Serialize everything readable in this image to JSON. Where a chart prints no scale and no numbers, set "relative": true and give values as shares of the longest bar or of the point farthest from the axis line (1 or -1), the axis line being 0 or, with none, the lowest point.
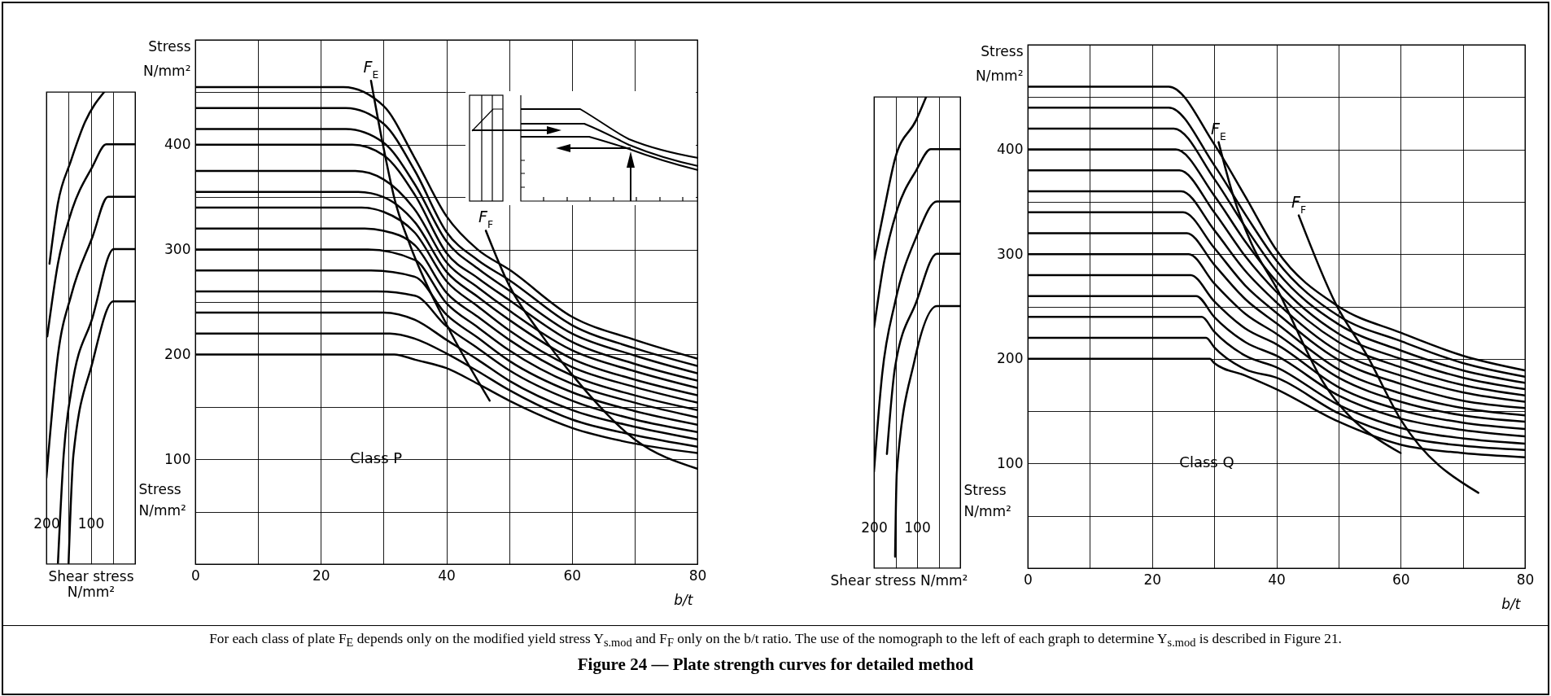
{
  "chart_data": [
    {
      "type": "line",
      "relative": true,
      "xlabel": "Shear stress N/mm²",
      "ylabel": "Stress N/mm²",
      "xlim": [
        200,
        0
      ],
      "xticks": [
        200,
        {
          "value": 150,
          "label": null
        },
        100,
        {
          "value": 50,
          "label": null
        },
        {
          "value": 0,
          "label": null
        }
      ],
      "tick_labels": "x",
      "grid": "x",
      "series": [
        {
          "color": "#000000",
          "x": [
            193,
            174,
            145,
            113,
            69.6
          ],
          "values": [
            0.636,
            0.764,
            0.853,
            0.936,
            1
          ]
        },
        {
          "color": "#000000",
          "x": [
            198,
            174,
            145,
            96,
            65,
            0
          ],
          "values": [
            0.482,
            0.636,
            0.742,
            0.842,
            0.889,
            0.889
          ]
        },
        {
          "color": "#000000",
          "x": [
            200,
            174,
            143.5,
            96,
            61,
            0
          ],
          "values": [
            0.182,
            0.442,
            0.571,
            0.693,
            0.778,
            0.778
          ]
        },
        {
          "color": "#000000",
          "x": [
            174,
            161,
            143.5,
            96,
            48,
            0
          ],
          "values": [
            0,
            0.231,
            0.369,
            0.522,
            0.667,
            0.667
          ]
        },
        {
          "color": "#000000",
          "x": [
            150,
            139,
            96,
            49,
            0
          ],
          "values": [
            0,
            0.231,
            0.427,
            0.556,
            0.556
          ]
        }
      ]
    },
    {
      "type": "line",
      "xlabel": "b/t",
      "ylabel": "Stress N/mm²",
      "xlim": [
        0,
        80
      ],
      "xticks": [
        0,
        {
          "value": 10,
          "label": null
        },
        20,
        {
          "value": 30,
          "label": null
        },
        40,
        {
          "value": 50,
          "label": null
        },
        60,
        {
          "value": 70,
          "label": null
        },
        80
      ],
      "ylim": [
        0,
        500
      ],
      "yticks": [
        {
          "value": 0,
          "label": null
        },
        {
          "value": 50,
          "label": null
        },
        100,
        {
          "value": 150,
          "label": null
        },
        200,
        {
          "value": 250,
          "label": null
        },
        300,
        {
          "value": 350,
          "label": null
        },
        400,
        {
          "value": 450,
          "label": null
        },
        {
          "value": 500,
          "label": null
        }
      ],
      "grid": true,
      "annotations": [
        "Class P"
      ],
      "series": [
        {
          "color": "#000000",
          "x": [
            0,
            23.6,
            30,
            35,
            40,
            45,
            50,
            60,
            70,
            80
          ],
          "values": [
            455,
            455,
            437,
            387,
            332,
            300,
            281,
            236,
            214,
            196
          ]
        },
        {
          "color": "#000000",
          "x": [
            0,
            24,
            30,
            35,
            40,
            45,
            50,
            60,
            70,
            80
          ],
          "values": [
            435,
            435,
            420,
            375,
            317,
            290,
            271,
            228,
            206,
            189
          ]
        },
        {
          "color": "#000000",
          "x": [
            0,
            24,
            30,
            35,
            40,
            45,
            50,
            60,
            70,
            80
          ],
          "values": [
            415,
            415,
            402,
            362,
            308,
            282,
            261,
            220,
            199,
            182
          ]
        },
        {
          "color": "#000000",
          "x": [
            0,
            25,
            30,
            35,
            40,
            45,
            50,
            60,
            70,
            80
          ],
          "values": [
            400,
            400,
            390,
            352,
            297,
            273,
            252,
            212,
            191,
            175
          ]
        },
        {
          "color": "#000000",
          "x": [
            0,
            25.5,
            30,
            35,
            40,
            45,
            50,
            60,
            70,
            80
          ],
          "values": [
            375,
            375,
            367,
            338,
            288,
            264,
            242,
            204,
            184,
            168
          ]
        },
        {
          "color": "#000000",
          "x": [
            0,
            26,
            30,
            35,
            40,
            45,
            50,
            60,
            70,
            80
          ],
          "values": [
            355,
            355,
            350,
            326,
            279,
            255,
            233,
            196,
            176,
            161
          ]
        },
        {
          "color": "#000000",
          "x": [
            0,
            26.5,
            30,
            35,
            40,
            45,
            50,
            60,
            70,
            80
          ],
          "values": [
            340,
            340,
            336,
            316,
            270,
            246,
            223,
            188,
            169,
            154
          ]
        },
        {
          "color": "#000000",
          "x": [
            0,
            27,
            30,
            35,
            40,
            45,
            50,
            60,
            70,
            80
          ],
          "values": [
            320,
            320,
            318,
            304,
            259,
            236,
            214,
            180,
            161,
            147
          ]
        },
        {
          "color": "#000000",
          "x": [
            0,
            27.5,
            35,
            40,
            45,
            50,
            60,
            70,
            80
          ],
          "values": [
            300,
            300,
            290,
            249,
            226,
            204,
            172,
            154,
            140
          ]
        },
        {
          "color": "#000000",
          "x": [
            0,
            28,
            35,
            40,
            45,
            50,
            60,
            70,
            80
          ],
          "values": [
            280,
            280,
            274,
            238,
            216,
            194,
            164,
            146,
            133
          ]
        },
        {
          "color": "#000000",
          "x": [
            0,
            29,
            35,
            40,
            45,
            50,
            60,
            70,
            80
          ],
          "values": [
            260,
            260,
            256,
            227,
            206,
            185,
            156,
            138,
            126
          ]
        },
        {
          "color": "#000000",
          "x": [
            0,
            30,
            35,
            40,
            45,
            50,
            60,
            70,
            80
          ],
          "values": [
            240,
            240,
            233,
            214,
            195,
            175,
            147,
            131,
            119
          ]
        },
        {
          "color": "#000000",
          "x": [
            0,
            31,
            35,
            40,
            45,
            50,
            60,
            70,
            80
          ],
          "values": [
            220,
            220,
            215,
            201,
            184,
            166,
            138,
            123,
            112
          ]
        },
        {
          "color": "#000000",
          "x": [
            0,
            31.7,
            35,
            40,
            45,
            50,
            60,
            70,
            80
          ],
          "values": [
            200,
            200,
            195,
            187,
            172,
            156,
            130,
            115,
            106
          ]
        },
        {
          "name": "F$_{E}$",
          "color": "#000000",
          "x": [
            28,
            29.8,
            31.8,
            34.3,
            40,
            46.9
          ],
          "values": [
            461,
            403,
            347,
            303,
            229,
            156
          ]
        },
        {
          "name": "F$_{F}$",
          "color": "#000000",
          "x": [
            46.3,
            50,
            55,
            60,
            70,
            80
          ],
          "values": [
            318,
            266,
            220,
            181,
            119,
            91
          ]
        }
      ]
    },
    {
      "type": "line",
      "relative": true,
      "xlabel": "Shear stress N/mm²",
      "ylabel": "Stress N/mm²",
      "xlim": [
        200,
        0
      ],
      "xticks": [
        200,
        {
          "value": 150,
          "label": null
        },
        100,
        {
          "value": 50,
          "label": null
        },
        {
          "value": 0,
          "label": null
        }
      ],
      "tick_labels": "x",
      "grid": "x",
      "series": [
        {
          "color": "#000000",
          "x": [
            200,
            177,
            151,
            102,
            79
          ],
          "values": [
            0.653,
            0.758,
            0.869,
            0.951,
            1
          ]
        },
        {
          "color": "#000000",
          "x": [
            200,
            177,
            147,
            102,
            68,
            0
          ],
          "values": [
            0.509,
            0.647,
            0.758,
            0.844,
            0.889,
            0.889
          ]
        },
        {
          "color": "#000000",
          "x": [
            200,
            181,
            151,
            102,
            54,
            0
          ],
          "values": [
            0.204,
            0.411,
            0.564,
            0.702,
            0.778,
            0.778
          ]
        },
        {
          "color": "#000000",
          "x": [
            170,
            151,
            102,
            54,
            0
          ],
          "values": [
            0.242,
            0.427,
            0.564,
            0.667,
            0.667
          ]
        },
        {
          "color": "#000000",
          "x": [
            151,
            147,
            106,
            54,
            0
          ],
          "values": [
            0.024,
            0.204,
            0.44,
            0.556,
            0.556
          ]
        }
      ]
    },
    {
      "type": "line",
      "xlabel": "b/t",
      "ylabel": "Stress N/mm²",
      "xlim": [
        0,
        80
      ],
      "xticks": [
        0,
        {
          "value": 10,
          "label": null
        },
        20,
        {
          "value": 30,
          "label": null
        },
        40,
        {
          "value": 50,
          "label": null
        },
        60,
        {
          "value": 70,
          "label": null
        },
        80
      ],
      "ylim": [
        0,
        500
      ],
      "yticks": [
        {
          "value": 0,
          "label": null
        },
        {
          "value": 50,
          "label": null
        },
        100,
        {
          "value": 150,
          "label": null
        },
        200,
        {
          "value": 250,
          "label": null
        },
        300,
        {
          "value": 350,
          "label": null
        },
        400,
        {
          "value": 450,
          "label": null
        },
        {
          "value": 500,
          "label": null
        }
      ],
      "grid": true,
      "annotations": [
        "Class Q"
      ],
      "series": [
        {
          "color": "#000000",
          "x": [
            0,
            22.7,
            30,
            35,
            40,
            50,
            60,
            70,
            80
          ],
          "values": [
            460,
            460,
            405,
            355,
            304,
            250,
            225,
            203,
            189
          ]
        },
        {
          "color": "#000000",
          "x": [
            0,
            22.7,
            30,
            35,
            40,
            50,
            60,
            70,
            80
          ],
          "values": [
            440,
            440,
            385,
            338,
            294,
            241,
            217,
            196,
            183
          ]
        },
        {
          "color": "#000000",
          "x": [
            0,
            23.5,
            30,
            35,
            40,
            50,
            60,
            70,
            80
          ],
          "values": [
            420,
            420,
            372,
            326,
            284,
            233,
            208,
            189,
            177
          ]
        },
        {
          "color": "#000000",
          "x": [
            0,
            23.8,
            30,
            35,
            40,
            50,
            60,
            70,
            80
          ],
          "values": [
            400,
            400,
            356,
            312,
            274,
            224,
            200,
            182,
            171
          ]
        },
        {
          "color": "#000000",
          "x": [
            0,
            24.4,
            30,
            35,
            40,
            50,
            60,
            70,
            80
          ],
          "values": [
            380,
            380,
            340,
            298,
            264,
            216,
            192,
            175,
            165
          ]
        },
        {
          "color": "#000000",
          "x": [
            0,
            24.7,
            30,
            35,
            40,
            50,
            60,
            70,
            80
          ],
          "values": [
            360,
            360,
            323,
            284,
            254,
            207,
            184,
            168,
            159
          ]
        },
        {
          "color": "#000000",
          "x": [
            0,
            25,
            30,
            35,
            40,
            50,
            60,
            70,
            80
          ],
          "values": [
            340,
            340,
            306,
            270,
            244,
            199,
            176,
            160,
            153
          ]
        },
        {
          "color": "#000000",
          "x": [
            0,
            25.6,
            30,
            35,
            40,
            50,
            60,
            70,
            80
          ],
          "values": [
            320,
            320,
            290,
            257,
            234,
            190,
            167,
            153,
            146
          ]
        },
        {
          "color": "#000000",
          "x": [
            0,
            25.9,
            30,
            35,
            40,
            50,
            60,
            70,
            80
          ],
          "values": [
            300,
            300,
            272,
            243,
            224,
            182,
            159,
            146,
            140
          ]
        },
        {
          "color": "#000000",
          "x": [
            0,
            26.2,
            30,
            35,
            40,
            50,
            60,
            70,
            80
          ],
          "values": [
            280,
            280,
            255,
            229,
            214,
            173,
            151,
            139,
            133
          ]
        },
        {
          "color": "#000000",
          "x": [
            0,
            27.1,
            30,
            35,
            40,
            50,
            60,
            70,
            80
          ],
          "values": [
            260,
            260,
            240,
            216,
            203,
            165,
            143,
            132,
            126
          ]
        },
        {
          "color": "#000000",
          "x": [
            0,
            28,
            30,
            35,
            40,
            50,
            60,
            70,
            80
          ],
          "values": [
            240,
            240,
            226,
            203,
            192,
            156,
            134,
            124,
            119
          ]
        },
        {
          "color": "#000000",
          "x": [
            0,
            28.7,
            30,
            35,
            40,
            50,
            60,
            70,
            80
          ],
          "values": [
            220,
            220,
            211,
            190,
            182,
            148,
            126,
            117,
            113
          ]
        },
        {
          "color": "#000000",
          "x": [
            0,
            29.3,
            30,
            35,
            40,
            50,
            60,
            70,
            80
          ],
          "values": [
            200,
            200,
            196,
            184,
            171,
            140,
            118,
            110,
            106
          ]
        },
        {
          "name": "F$_{E}$",
          "color": "#000000",
          "x": [
            30.7,
            33.1,
            36,
            40,
            47.5,
            60
          ],
          "values": [
            407,
            355,
            310,
            268,
            178,
            110
          ]
        },
        {
          "name": "F$_{F}$",
          "color": "#000000",
          "x": [
            43.6,
            49.6,
            54.6,
            60,
            72.5
          ],
          "values": [
            337,
            252,
            203,
            142,
            72
          ]
        }
      ]
    },
    {
      "type": "other",
      "title": "Figure 24 — Plate strength curves for detailed method",
      "annotations": [
        "For each class of plate F$_{E}$ depends only on the modified yield stress Y$_{s.mod}$ and F$_{F}$ only on the b/t ratio. The use of the nomograph to the left of each graph to determine Y$_{s.mod}$ is described in Figure 21."
      ]
    }
  ]
}
